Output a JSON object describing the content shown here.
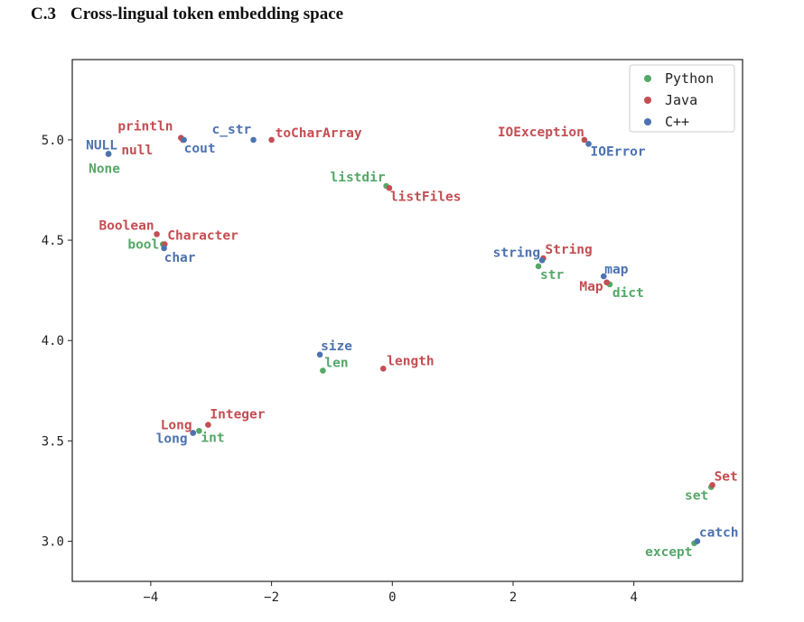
{
  "section": {
    "number": "C.3",
    "title": "Cross-lingual token embedding space"
  },
  "chart_data": {
    "type": "scatter",
    "title": "",
    "xlabel": "",
    "ylabel": "",
    "xlim": [
      -5.3,
      5.8
    ],
    "ylim": [
      2.8,
      5.4
    ],
    "xticks": [
      -4,
      -2,
      0,
      2,
      4
    ],
    "xtick_labels": [
      "−4",
      "−2",
      "0",
      "2",
      "4"
    ],
    "yticks": [
      3.0,
      3.5,
      4.0,
      4.5,
      5.0
    ],
    "ytick_labels": [
      "3.0",
      "3.5",
      "4.0",
      "4.5",
      "5.0"
    ],
    "grid": false,
    "legend_position": "top-right",
    "series": [
      {
        "name": "Python",
        "color": "#55a868",
        "points": [
          {
            "label": "None",
            "x": -4.7,
            "y": 4.93
          },
          {
            "label": "bool",
            "x": -3.8,
            "y": 4.48
          },
          {
            "label": "listdir",
            "x": -0.1,
            "y": 4.77
          },
          {
            "label": "str",
            "x": 2.42,
            "y": 4.37
          },
          {
            "label": "dict",
            "x": 3.6,
            "y": 4.28
          },
          {
            "label": "len",
            "x": -1.15,
            "y": 3.85
          },
          {
            "label": "int",
            "x": -3.2,
            "y": 3.55
          },
          {
            "label": "set",
            "x": 5.28,
            "y": 3.27
          },
          {
            "label": "except",
            "x": 5.0,
            "y": 2.99
          }
        ]
      },
      {
        "name": "Java",
        "color": "#c44e52",
        "points": [
          {
            "label": "println",
            "x": -3.5,
            "y": 5.01
          },
          {
            "label": "null",
            "x": -3.47,
            "y": 5.0
          },
          {
            "label": "toCharArray",
            "x": -2.0,
            "y": 5.0
          },
          {
            "label": "IOException",
            "x": 3.18,
            "y": 5.0
          },
          {
            "label": "listFiles",
            "x": -0.05,
            "y": 4.76
          },
          {
            "label": "Boolean",
            "x": -3.9,
            "y": 4.53
          },
          {
            "label": "Character",
            "x": -3.77,
            "y": 4.48
          },
          {
            "label": "String",
            "x": 2.5,
            "y": 4.41
          },
          {
            "label": "Map",
            "x": 3.55,
            "y": 4.29
          },
          {
            "label": "length",
            "x": -0.15,
            "y": 3.86
          },
          {
            "label": "Integer",
            "x": -3.05,
            "y": 3.58
          },
          {
            "label": "Long",
            "x": -3.3,
            "y": 3.54
          },
          {
            "label": "Set",
            "x": 5.3,
            "y": 3.28
          }
        ]
      },
      {
        "name": "C++",
        "color": "#4c72b0",
        "points": [
          {
            "label": "NULL",
            "x": -4.7,
            "y": 4.93
          },
          {
            "label": "c_str",
            "x": -2.3,
            "y": 5.0
          },
          {
            "label": "cout",
            "x": -3.45,
            "y": 5.0
          },
          {
            "label": "IOError",
            "x": 3.25,
            "y": 4.98
          },
          {
            "label": "char",
            "x": -3.78,
            "y": 4.46
          },
          {
            "label": "string",
            "x": 2.48,
            "y": 4.4
          },
          {
            "label": "map",
            "x": 3.5,
            "y": 4.32
          },
          {
            "label": "size",
            "x": -1.2,
            "y": 3.93
          },
          {
            "label": "long",
            "x": -3.3,
            "y": 3.54
          },
          {
            "label": "catch",
            "x": 5.05,
            "y": 3.0
          }
        ]
      }
    ]
  }
}
